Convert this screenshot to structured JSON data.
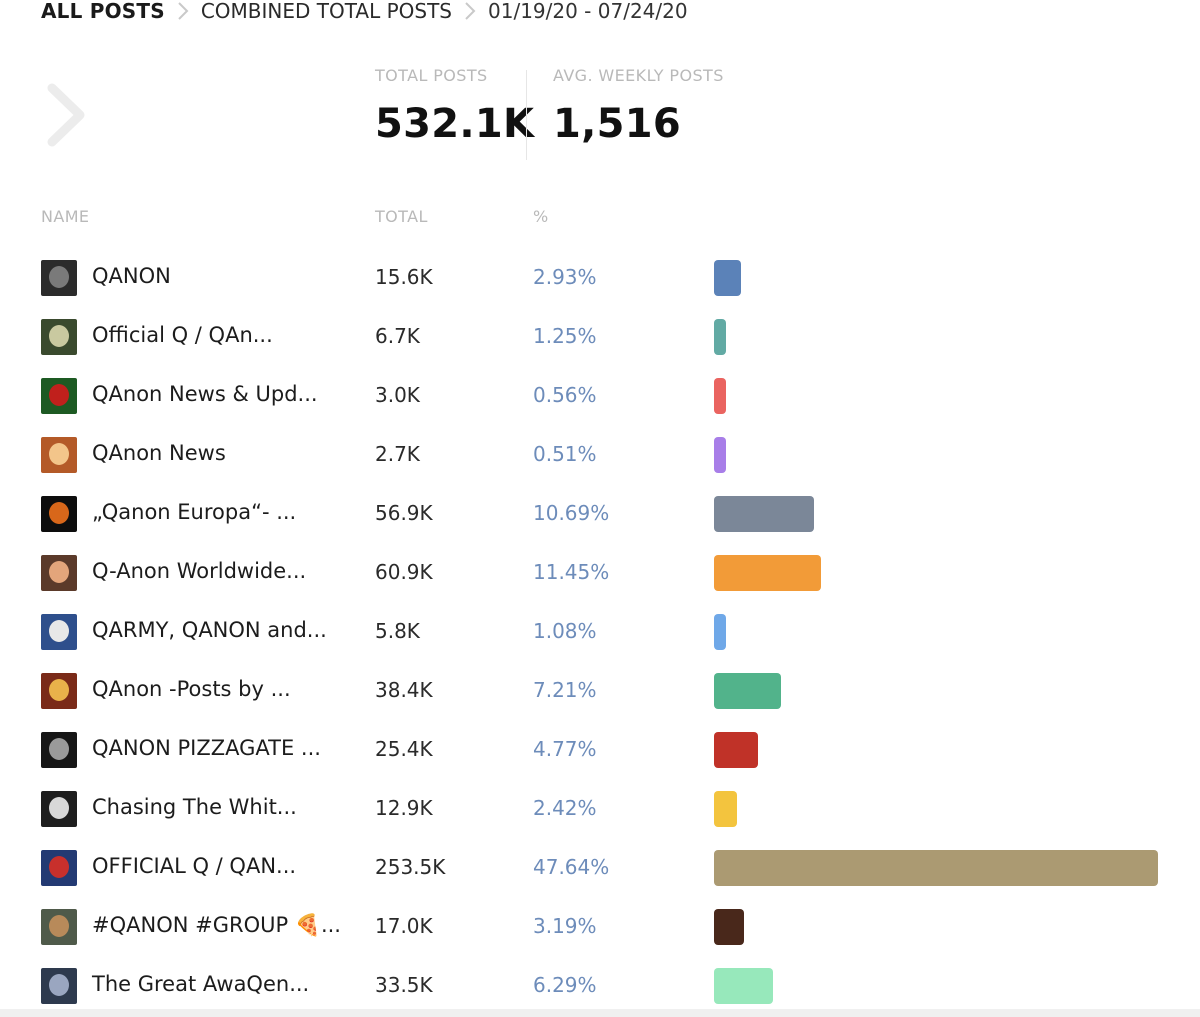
{
  "breadcrumb": {
    "items": [
      "ALL POSTS",
      "COMBINED TOTAL POSTS"
    ],
    "date_range": "01/19/20 - 07/24/20"
  },
  "stats": {
    "total_posts_label": "TOTAL POSTS",
    "total_posts_value": "532.1K",
    "avg_weekly_label": "AVG. WEEKLY POSTS",
    "avg_weekly_value": "1,516"
  },
  "table": {
    "headers": {
      "name": "NAME",
      "total": "TOTAL",
      "percent": "%"
    },
    "rows": [
      {
        "name": "QANON",
        "total": "15.6K",
        "percent": "2.93%",
        "share": 2.93,
        "color": "#5b82b8",
        "avatar_bg": "#2b2b2b",
        "avatar_fg": "#7a7a7a"
      },
      {
        "name": "Official Q / QAn...",
        "total": "6.7K",
        "percent": "1.25%",
        "share": 1.25,
        "color": "#62aaa4",
        "avatar_bg": "#3a4a2e",
        "avatar_fg": "#c9c9a0"
      },
      {
        "name": "QAnon News & Upd...",
        "total": "3.0K",
        "percent": "0.56%",
        "share": 0.56,
        "color": "#ea6460",
        "avatar_bg": "#1d5a23",
        "avatar_fg": "#c0201c"
      },
      {
        "name": "QAnon News",
        "total": "2.7K",
        "percent": "0.51%",
        "share": 0.51,
        "color": "#a87ee8",
        "avatar_bg": "#b45a28",
        "avatar_fg": "#f3c58a"
      },
      {
        "name": "„Qanon Europa“- ...",
        "total": "56.9K",
        "percent": "10.69%",
        "share": 10.69,
        "color": "#7b8798",
        "avatar_bg": "#0d0d0d",
        "avatar_fg": "#d8671a"
      },
      {
        "name": "Q-Anon Worldwide...",
        "total": "60.9K",
        "percent": "11.45%",
        "share": 11.45,
        "color": "#f29b38",
        "avatar_bg": "#5b3a2a",
        "avatar_fg": "#e3a57b"
      },
      {
        "name": "QARMY, QANON and...",
        "total": "5.8K",
        "percent": "1.08%",
        "share": 1.08,
        "color": "#6fa8e8",
        "avatar_bg": "#2e4f8c",
        "avatar_fg": "#e8e8e8"
      },
      {
        "name": "QAnon -Posts by ...",
        "total": "38.4K",
        "percent": "7.21%",
        "share": 7.21,
        "color": "#52b38b",
        "avatar_bg": "#7a2a18",
        "avatar_fg": "#e9b24a"
      },
      {
        "name": "QANON PIZZAGATE ...",
        "total": "25.4K",
        "percent": "4.77%",
        "share": 4.77,
        "color": "#c03228",
        "avatar_bg": "#161616",
        "avatar_fg": "#9a9a9a"
      },
      {
        "name": "Chasing The Whit...",
        "total": "12.9K",
        "percent": "2.42%",
        "share": 2.42,
        "color": "#f3c43e",
        "avatar_bg": "#1e1e1e",
        "avatar_fg": "#d8d8d8"
      },
      {
        "name": "OFFICIAL Q / QAN...",
        "total": "253.5K",
        "percent": "47.64%",
        "share": 47.64,
        "color": "#ab9a72",
        "avatar_bg": "#233a73",
        "avatar_fg": "#c8302c"
      },
      {
        "name": "#QANON #GROUP 🍕...",
        "total": "17.0K",
        "percent": "3.19%",
        "share": 3.19,
        "color": "#49281b",
        "avatar_bg": "#4f5a4a",
        "avatar_fg": "#b88a5a"
      },
      {
        "name": "The Great AwaQen...",
        "total": "33.5K",
        "percent": "6.29%",
        "share": 6.29,
        "color": "#97e8bb",
        "avatar_bg": "#2e3a4e",
        "avatar_fg": "#9aa6c0"
      }
    ]
  }
}
